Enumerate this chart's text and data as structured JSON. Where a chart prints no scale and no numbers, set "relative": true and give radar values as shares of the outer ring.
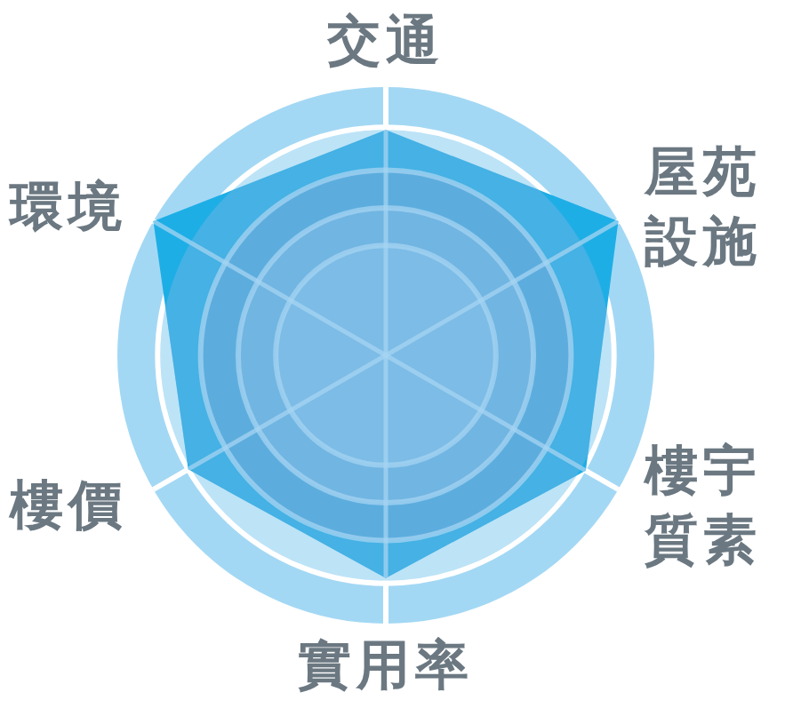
{
  "chart_data": {
    "type": "radar",
    "categories": [
      "交通",
      "屋苑設施",
      "樓宇質素",
      "實用率",
      "樓價",
      "環境"
    ],
    "values": [
      0.84,
      1,
      0.86,
      0.83,
      0.85,
      1
    ],
    "color": "#1eaee6",
    "relative": true,
    "grid": true
  }
}
